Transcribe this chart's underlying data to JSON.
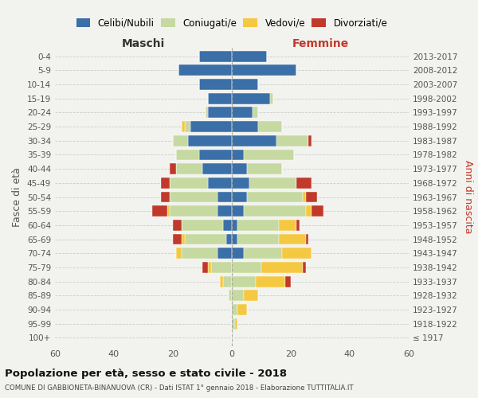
{
  "age_groups": [
    "100+",
    "95-99",
    "90-94",
    "85-89",
    "80-84",
    "75-79",
    "70-74",
    "65-69",
    "60-64",
    "55-59",
    "50-54",
    "45-49",
    "40-44",
    "35-39",
    "30-34",
    "25-29",
    "20-24",
    "15-19",
    "10-14",
    "5-9",
    "0-4"
  ],
  "birth_years": [
    "≤ 1917",
    "1918-1922",
    "1923-1927",
    "1928-1932",
    "1933-1937",
    "1938-1942",
    "1943-1947",
    "1948-1952",
    "1953-1957",
    "1958-1962",
    "1963-1967",
    "1968-1972",
    "1973-1977",
    "1978-1982",
    "1983-1987",
    "1988-1992",
    "1993-1997",
    "1998-2002",
    "2003-2007",
    "2008-2012",
    "2013-2017"
  ],
  "colors": {
    "celibi": "#3a6fa8",
    "coniugati": "#c5d9a0",
    "vedovi": "#f5c842",
    "divorziati": "#c0392b"
  },
  "maschi": {
    "celibi": [
      0,
      0,
      0,
      0,
      0,
      0,
      5,
      2,
      3,
      5,
      5,
      8,
      10,
      11,
      15,
      14,
      8,
      8,
      11,
      18,
      11
    ],
    "coniugati": [
      0,
      0,
      0,
      1,
      3,
      7,
      12,
      14,
      14,
      16,
      16,
      13,
      9,
      8,
      5,
      2,
      1,
      0,
      0,
      0,
      0
    ],
    "vedovi": [
      0,
      0,
      0,
      0,
      1,
      1,
      2,
      1,
      0,
      1,
      0,
      0,
      0,
      0,
      0,
      1,
      0,
      0,
      0,
      0,
      0
    ],
    "divorziati": [
      0,
      0,
      0,
      0,
      0,
      2,
      0,
      3,
      3,
      5,
      3,
      3,
      2,
      0,
      0,
      0,
      0,
      0,
      0,
      0,
      0
    ]
  },
  "femmine": {
    "celibi": [
      0,
      0,
      0,
      0,
      0,
      0,
      4,
      2,
      2,
      4,
      5,
      6,
      5,
      4,
      15,
      9,
      7,
      13,
      9,
      22,
      12
    ],
    "coniugati": [
      0,
      1,
      2,
      4,
      8,
      10,
      13,
      14,
      14,
      21,
      19,
      16,
      12,
      17,
      11,
      8,
      2,
      1,
      0,
      0,
      0
    ],
    "vedovi": [
      0,
      1,
      3,
      5,
      10,
      14,
      10,
      9,
      6,
      2,
      1,
      0,
      0,
      0,
      0,
      0,
      0,
      0,
      0,
      0,
      0
    ],
    "divorziati": [
      0,
      0,
      0,
      0,
      2,
      1,
      0,
      1,
      1,
      4,
      4,
      5,
      0,
      0,
      1,
      0,
      0,
      0,
      0,
      0,
      0
    ]
  },
  "xlim": 60,
  "title": "Popolazione per età, sesso e stato civile - 2018",
  "subtitle": "COMUNE DI GABBIONETA-BINANUOVA (CR) - Dati ISTAT 1° gennaio 2018 - Elaborazione TUTTITALIA.IT",
  "ylabel_left": "Fasce di età",
  "ylabel_right": "Anni di nascita",
  "xlabel_maschi": "Maschi",
  "xlabel_femmine": "Femmine",
  "bg_color": "#f2f2ee",
  "legend_labels": [
    "Celibi/Nubili",
    "Coniugati/e",
    "Vedovi/e",
    "Divorziati/e"
  ]
}
